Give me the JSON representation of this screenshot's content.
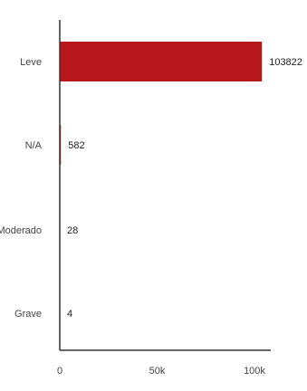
{
  "chart_data": {
    "type": "bar",
    "orientation": "horizontal",
    "categories": [
      "Leve",
      "N/A",
      "Moderado",
      "Grave"
    ],
    "values": [
      103822,
      582,
      28,
      4
    ],
    "value_labels": [
      "103822",
      "582",
      "28",
      "4"
    ],
    "xlim": [
      0,
      104000
    ],
    "x_ticks": [
      0,
      50000,
      100000
    ],
    "x_tick_labels": [
      "0",
      "50k",
      "100k"
    ],
    "grid": false,
    "legend": "none"
  },
  "colors": {
    "bar": "#b5171c",
    "axis": "#333333",
    "text": "#444444"
  }
}
